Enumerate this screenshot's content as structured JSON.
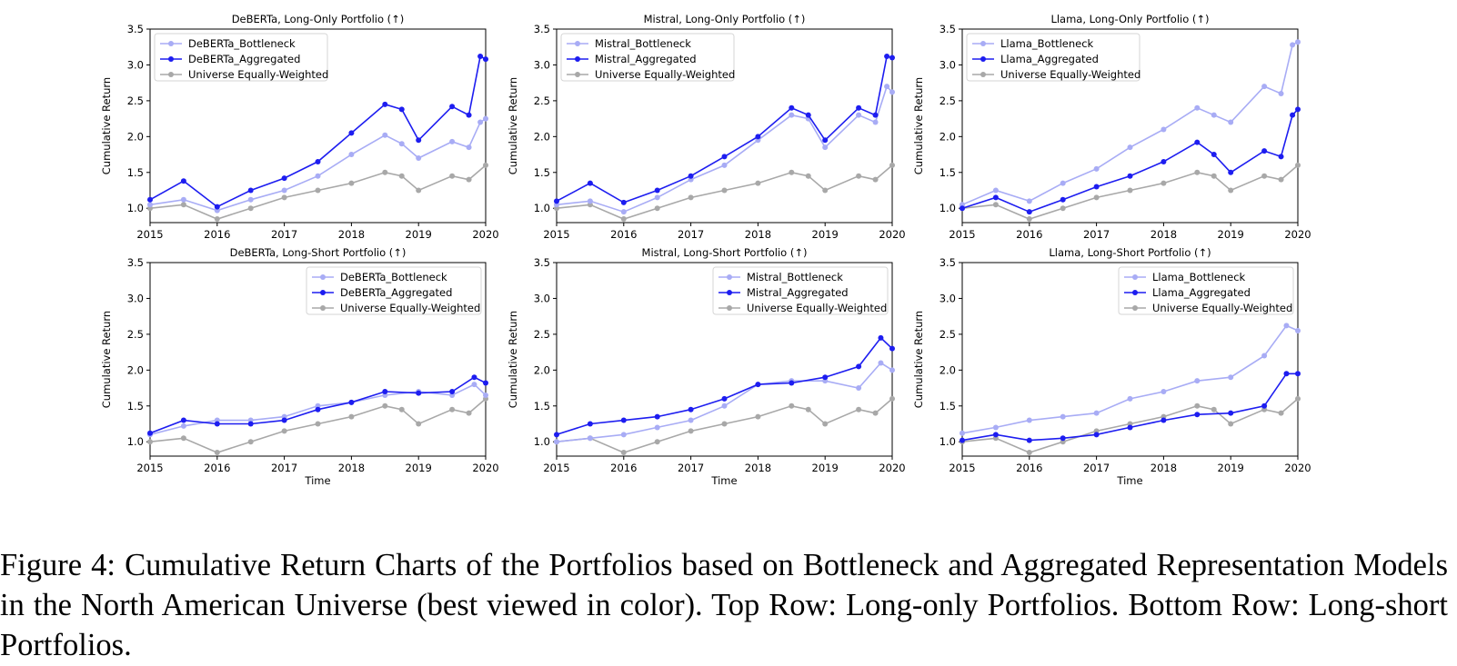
{
  "caption": "Figure 4: Cumulative Return Charts of the Portfolios based on Bottleneck and Aggregated Representation Models in the North American Universe (best viewed in color). Top Row: Long-only Portfolios. Bottom Row: Long-short Portfolios.",
  "colors": {
    "bottleneck": "#a8acf5",
    "aggregated": "#1d1df0",
    "universe": "#a8a8a8"
  },
  "chart_data": [
    {
      "type": "line",
      "title": "DeBERTa, Long-Only Portfolio (↑)",
      "xlabel": "",
      "ylabel": "Cumulative Return",
      "xlim": [
        2015,
        2020
      ],
      "ylim": [
        0.8,
        3.5
      ],
      "xticks": [
        "2015",
        "2016",
        "2017",
        "2018",
        "2019",
        "2020"
      ],
      "yticks": [
        "1.0",
        "1.5",
        "2.0",
        "2.5",
        "3.0",
        "3.5"
      ],
      "legend_position": "top-left",
      "series": [
        {
          "name": "DeBERTa_Bottleneck",
          "color_key": "bottleneck",
          "x": [
            2015.0,
            2015.5,
            2016.0,
            2016.5,
            2017.0,
            2017.5,
            2018.0,
            2018.5,
            2018.75,
            2019.0,
            2019.5,
            2019.75,
            2019.92,
            2020.0
          ],
          "y": [
            1.05,
            1.12,
            0.97,
            1.12,
            1.25,
            1.45,
            1.75,
            2.02,
            1.9,
            1.7,
            1.93,
            1.85,
            2.2,
            2.25
          ]
        },
        {
          "name": "DeBERTa_Aggregated",
          "color_key": "aggregated",
          "x": [
            2015.0,
            2015.5,
            2016.0,
            2016.5,
            2017.0,
            2017.5,
            2018.0,
            2018.5,
            2018.75,
            2019.0,
            2019.5,
            2019.75,
            2019.92,
            2020.0
          ],
          "y": [
            1.12,
            1.38,
            1.02,
            1.25,
            1.42,
            1.65,
            2.05,
            2.45,
            2.38,
            1.95,
            2.42,
            2.3,
            3.12,
            3.08
          ]
        },
        {
          "name": "Universe Equally-Weighted",
          "color_key": "universe",
          "x": [
            2015.0,
            2015.5,
            2016.0,
            2016.5,
            2017.0,
            2017.5,
            2018.0,
            2018.5,
            2018.75,
            2019.0,
            2019.5,
            2019.75,
            2020.0
          ],
          "y": [
            1.0,
            1.05,
            0.85,
            1.0,
            1.15,
            1.25,
            1.35,
            1.5,
            1.45,
            1.25,
            1.45,
            1.4,
            1.6
          ]
        }
      ]
    },
    {
      "type": "line",
      "title": "Mistral, Long-Only Portfolio (↑)",
      "xlabel": "",
      "ylabel": "Cumulative Return",
      "xlim": [
        2015,
        2020
      ],
      "ylim": [
        0.8,
        3.5
      ],
      "xticks": [
        "2015",
        "2016",
        "2017",
        "2018",
        "2019",
        "2020"
      ],
      "yticks": [
        "1.0",
        "1.5",
        "2.0",
        "2.5",
        "3.0",
        "3.5"
      ],
      "legend_position": "top-left",
      "series": [
        {
          "name": "Mistral_Bottleneck",
          "color_key": "bottleneck",
          "x": [
            2015.0,
            2015.5,
            2016.0,
            2016.5,
            2017.0,
            2017.5,
            2018.0,
            2018.5,
            2018.75,
            2019.0,
            2019.5,
            2019.75,
            2019.92,
            2020.0
          ],
          "y": [
            1.05,
            1.1,
            0.95,
            1.15,
            1.4,
            1.6,
            1.95,
            2.3,
            2.25,
            1.85,
            2.3,
            2.2,
            2.7,
            2.62
          ]
        },
        {
          "name": "Mistral_Aggregated",
          "color_key": "aggregated",
          "x": [
            2015.0,
            2015.5,
            2016.0,
            2016.5,
            2017.0,
            2017.5,
            2018.0,
            2018.5,
            2018.75,
            2019.0,
            2019.5,
            2019.75,
            2019.92,
            2020.0
          ],
          "y": [
            1.1,
            1.35,
            1.08,
            1.25,
            1.45,
            1.72,
            2.0,
            2.4,
            2.3,
            1.95,
            2.4,
            2.3,
            3.12,
            3.1
          ]
        },
        {
          "name": "Universe Equally-Weighted",
          "color_key": "universe",
          "x": [
            2015.0,
            2015.5,
            2016.0,
            2016.5,
            2017.0,
            2017.5,
            2018.0,
            2018.5,
            2018.75,
            2019.0,
            2019.5,
            2019.75,
            2020.0
          ],
          "y": [
            1.0,
            1.05,
            0.85,
            1.0,
            1.15,
            1.25,
            1.35,
            1.5,
            1.45,
            1.25,
            1.45,
            1.4,
            1.6
          ]
        }
      ]
    },
    {
      "type": "line",
      "title": "Llama, Long-Only Portfolio (↑)",
      "xlabel": "",
      "ylabel": "Cumulative Return",
      "xlim": [
        2015,
        2020
      ],
      "ylim": [
        0.8,
        3.5
      ],
      "xticks": [
        "2015",
        "2016",
        "2017",
        "2018",
        "2019",
        "2020"
      ],
      "yticks": [
        "1.0",
        "1.5",
        "2.0",
        "2.5",
        "3.0",
        "3.5"
      ],
      "legend_position": "top-left",
      "series": [
        {
          "name": "Llama_Bottleneck",
          "color_key": "bottleneck",
          "x": [
            2015.0,
            2015.5,
            2016.0,
            2016.5,
            2017.0,
            2017.5,
            2018.0,
            2018.5,
            2018.75,
            2019.0,
            2019.5,
            2019.75,
            2019.92,
            2020.0
          ],
          "y": [
            1.05,
            1.25,
            1.1,
            1.35,
            1.55,
            1.85,
            2.1,
            2.4,
            2.3,
            2.2,
            2.7,
            2.6,
            3.28,
            3.32
          ]
        },
        {
          "name": "Llama_Aggregated",
          "color_key": "aggregated",
          "x": [
            2015.0,
            2015.5,
            2016.0,
            2016.5,
            2017.0,
            2017.5,
            2018.0,
            2018.5,
            2018.75,
            2019.0,
            2019.5,
            2019.75,
            2019.92,
            2020.0
          ],
          "y": [
            1.0,
            1.15,
            0.95,
            1.12,
            1.3,
            1.45,
            1.65,
            1.92,
            1.75,
            1.5,
            1.8,
            1.72,
            2.3,
            2.38
          ]
        },
        {
          "name": "Universe Equally-Weighted",
          "color_key": "universe",
          "x": [
            2015.0,
            2015.5,
            2016.0,
            2016.5,
            2017.0,
            2017.5,
            2018.0,
            2018.5,
            2018.75,
            2019.0,
            2019.5,
            2019.75,
            2020.0
          ],
          "y": [
            1.0,
            1.05,
            0.85,
            1.0,
            1.15,
            1.25,
            1.35,
            1.5,
            1.45,
            1.25,
            1.45,
            1.4,
            1.6
          ]
        }
      ]
    },
    {
      "type": "line",
      "title": "DeBERTa, Long-Short Portfolio (↑)",
      "xlabel": "Time",
      "ylabel": "Cumulative Return",
      "xlim": [
        2015,
        2020
      ],
      "ylim": [
        0.8,
        3.5
      ],
      "xticks": [
        "2015",
        "2016",
        "2017",
        "2018",
        "2019",
        "2020"
      ],
      "yticks": [
        "1.0",
        "1.5",
        "2.0",
        "2.5",
        "3.0",
        "3.5"
      ],
      "legend_position": "top-right",
      "series": [
        {
          "name": "DeBERTa_Bottleneck",
          "color_key": "bottleneck",
          "x": [
            2015.0,
            2015.5,
            2016.0,
            2016.5,
            2017.0,
            2017.5,
            2018.0,
            2018.5,
            2019.0,
            2019.5,
            2019.83,
            2020.0
          ],
          "y": [
            1.1,
            1.22,
            1.3,
            1.3,
            1.35,
            1.5,
            1.55,
            1.65,
            1.7,
            1.65,
            1.8,
            1.65
          ]
        },
        {
          "name": "DeBERTa_Aggregated",
          "color_key": "aggregated",
          "x": [
            2015.0,
            2015.5,
            2016.0,
            2016.5,
            2017.0,
            2017.5,
            2018.0,
            2018.5,
            2019.0,
            2019.5,
            2019.83,
            2020.0
          ],
          "y": [
            1.12,
            1.3,
            1.25,
            1.25,
            1.3,
            1.45,
            1.55,
            1.7,
            1.68,
            1.7,
            1.9,
            1.82
          ]
        },
        {
          "name": "Universe Equally-Weighted",
          "color_key": "universe",
          "x": [
            2015.0,
            2015.5,
            2016.0,
            2016.5,
            2017.0,
            2017.5,
            2018.0,
            2018.5,
            2018.75,
            2019.0,
            2019.5,
            2019.75,
            2020.0
          ],
          "y": [
            1.0,
            1.05,
            0.85,
            1.0,
            1.15,
            1.25,
            1.35,
            1.5,
            1.45,
            1.25,
            1.45,
            1.4,
            1.6
          ]
        }
      ]
    },
    {
      "type": "line",
      "title": "Mistral, Long-Short Portfolio (↑)",
      "xlabel": "Time",
      "ylabel": "Cumulative Return",
      "xlim": [
        2015,
        2020
      ],
      "ylim": [
        0.8,
        3.5
      ],
      "xticks": [
        "2015",
        "2016",
        "2017",
        "2018",
        "2019",
        "2020"
      ],
      "yticks": [
        "1.0",
        "1.5",
        "2.0",
        "2.5",
        "3.0",
        "3.5"
      ],
      "legend_position": "top-right",
      "series": [
        {
          "name": "Mistral_Bottleneck",
          "color_key": "bottleneck",
          "x": [
            2015.0,
            2015.5,
            2016.0,
            2016.5,
            2017.0,
            2017.5,
            2018.0,
            2018.5,
            2019.0,
            2019.5,
            2019.83,
            2020.0
          ],
          "y": [
            1.0,
            1.05,
            1.1,
            1.2,
            1.3,
            1.5,
            1.8,
            1.85,
            1.85,
            1.75,
            2.1,
            2.0
          ]
        },
        {
          "name": "Mistral_Aggregated",
          "color_key": "aggregated",
          "x": [
            2015.0,
            2015.5,
            2016.0,
            2016.5,
            2017.0,
            2017.5,
            2018.0,
            2018.5,
            2019.0,
            2019.5,
            2019.83,
            2020.0
          ],
          "y": [
            1.1,
            1.25,
            1.3,
            1.35,
            1.45,
            1.6,
            1.8,
            1.82,
            1.9,
            2.05,
            2.45,
            2.3
          ]
        },
        {
          "name": "Universe Equally-Weighted",
          "color_key": "universe",
          "x": [
            2015.0,
            2015.5,
            2016.0,
            2016.5,
            2017.0,
            2017.5,
            2018.0,
            2018.5,
            2018.75,
            2019.0,
            2019.5,
            2019.75,
            2020.0
          ],
          "y": [
            1.0,
            1.05,
            0.85,
            1.0,
            1.15,
            1.25,
            1.35,
            1.5,
            1.45,
            1.25,
            1.45,
            1.4,
            1.6
          ]
        }
      ]
    },
    {
      "type": "line",
      "title": "Llama, Long-Short Portfolio (↑)",
      "xlabel": "Time",
      "ylabel": "Cumulative Return",
      "xlim": [
        2015,
        2020
      ],
      "ylim": [
        0.8,
        3.5
      ],
      "xticks": [
        "2015",
        "2016",
        "2017",
        "2018",
        "2019",
        "2020"
      ],
      "yticks": [
        "1.0",
        "1.5",
        "2.0",
        "2.5",
        "3.0",
        "3.5"
      ],
      "legend_position": "top-right",
      "series": [
        {
          "name": "Llama_Bottleneck",
          "color_key": "bottleneck",
          "x": [
            2015.0,
            2015.5,
            2016.0,
            2016.5,
            2017.0,
            2017.5,
            2018.0,
            2018.5,
            2019.0,
            2019.5,
            2019.83,
            2020.0
          ],
          "y": [
            1.12,
            1.2,
            1.3,
            1.35,
            1.4,
            1.6,
            1.7,
            1.85,
            1.9,
            2.2,
            2.62,
            2.55
          ]
        },
        {
          "name": "Llama_Aggregated",
          "color_key": "aggregated",
          "x": [
            2015.0,
            2015.5,
            2016.0,
            2016.5,
            2017.0,
            2017.5,
            2018.0,
            2018.5,
            2019.0,
            2019.5,
            2019.83,
            2020.0
          ],
          "y": [
            1.02,
            1.1,
            1.02,
            1.05,
            1.1,
            1.2,
            1.3,
            1.38,
            1.4,
            1.5,
            1.95,
            1.95
          ]
        },
        {
          "name": "Universe Equally-Weighted",
          "color_key": "universe",
          "x": [
            2015.0,
            2015.5,
            2016.0,
            2016.5,
            2017.0,
            2017.5,
            2018.0,
            2018.5,
            2018.75,
            2019.0,
            2019.5,
            2019.75,
            2020.0
          ],
          "y": [
            1.0,
            1.05,
            0.85,
            1.0,
            1.15,
            1.25,
            1.35,
            1.5,
            1.45,
            1.25,
            1.45,
            1.4,
            1.6
          ]
        }
      ]
    }
  ]
}
